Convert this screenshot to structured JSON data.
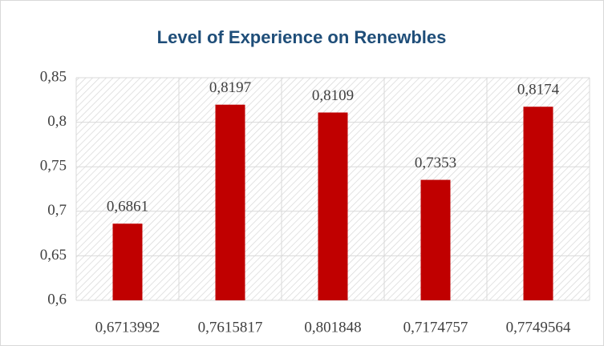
{
  "chart_data": {
    "type": "bar",
    "title": "Level of Experience on Renewbles",
    "categories": [
      "0,6713992",
      "0,7615817",
      "0,801848",
      "0,7174757",
      "0,7749564"
    ],
    "values": [
      0.6861,
      0.8197,
      0.8109,
      0.7353,
      0.8174
    ],
    "value_labels": [
      "0,6861",
      "0,8197",
      "0,8109",
      "0,7353",
      "0,8174"
    ],
    "color": "#c00000",
    "ylim": [
      0.6,
      0.85
    ],
    "yticks": [
      {
        "value": 0.6,
        "label": "0,6"
      },
      {
        "value": 0.65,
        "label": "0,65"
      },
      {
        "value": 0.7,
        "label": "0,7"
      },
      {
        "value": 0.75,
        "label": "0,75"
      },
      {
        "value": 0.8,
        "label": "0,8"
      },
      {
        "value": 0.85,
        "label": "0,85"
      }
    ],
    "grid": true
  }
}
